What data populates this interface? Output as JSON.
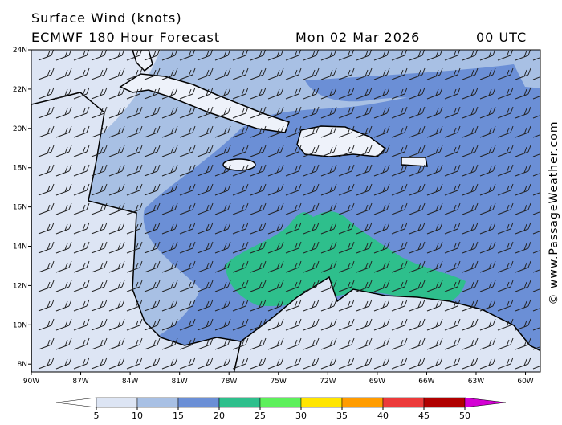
{
  "header": {
    "title": "Surface Wind (knots)",
    "model": "ECMWF 180 Hour Forecast",
    "date": "Mon 02 Mar 2026",
    "time": "00 UTC"
  },
  "credit": "© www.PassageWeather.com",
  "map": {
    "lon_range": [
      -90,
      -59.1
    ],
    "lat_range": [
      7.6,
      24
    ],
    "lon_ticks": [
      {
        "value": -90,
        "label": "90W"
      },
      {
        "value": -87,
        "label": "87W"
      },
      {
        "value": -84,
        "label": "84W"
      },
      {
        "value": -81,
        "label": "81W"
      },
      {
        "value": -78,
        "label": "78W"
      },
      {
        "value": -75,
        "label": "75W"
      },
      {
        "value": -72,
        "label": "72W"
      },
      {
        "value": -69,
        "label": "69W"
      },
      {
        "value": -66,
        "label": "66W"
      },
      {
        "value": -63,
        "label": "63W"
      },
      {
        "value": -60,
        "label": "60W"
      }
    ],
    "lat_ticks": [
      {
        "value": 24,
        "label": "24N"
      },
      {
        "value": 22,
        "label": "22N"
      },
      {
        "value": 20,
        "label": "20N"
      },
      {
        "value": 18,
        "label": "18N"
      },
      {
        "value": 16,
        "label": "16N"
      },
      {
        "value": 14,
        "label": "14N"
      },
      {
        "value": 12,
        "label": "12N"
      },
      {
        "value": 10,
        "label": "10N"
      },
      {
        "value": 8,
        "label": "8N"
      }
    ]
  },
  "colorbar": {
    "ticks": [
      5,
      10,
      15,
      20,
      25,
      30,
      35,
      40,
      45,
      50
    ],
    "colors": [
      "#ffffff",
      "#dde5f4",
      "#a8c0e4",
      "#6b8fd6",
      "#2ebf8c",
      "#5df05b",
      "#ffe500",
      "#ff9c00",
      "#ec3a3a",
      "#b00000",
      "#d400d4"
    ]
  }
}
